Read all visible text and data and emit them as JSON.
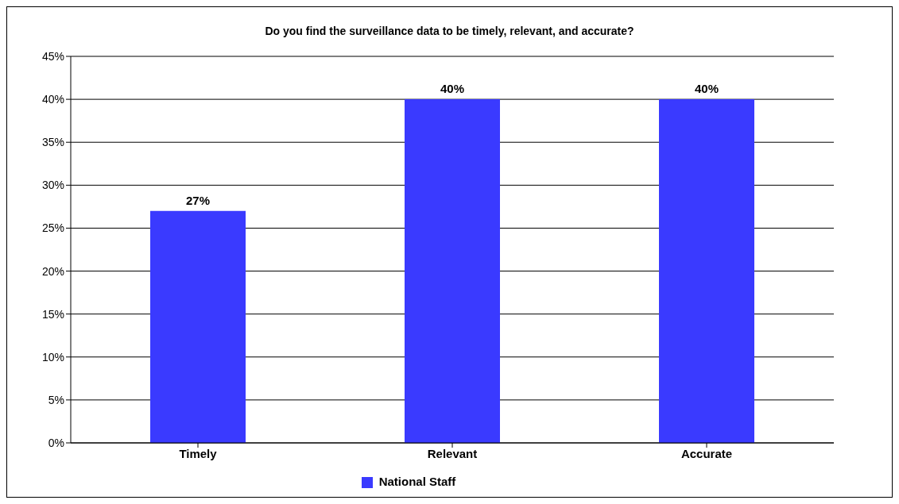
{
  "chart_data": {
    "type": "bar",
    "title": "Do you find the surveillance data to be timely, relevant, and accurate?",
    "categories": [
      "Timely",
      "Relevant",
      "Accurate"
    ],
    "series": [
      {
        "name": "National Staff",
        "color": "#3a3aff",
        "values": [
          27,
          40,
          40
        ],
        "value_labels": [
          "27%",
          "40%",
          "40%"
        ]
      }
    ],
    "ylim": [
      0,
      45
    ],
    "yticks": [
      {
        "value": 0,
        "label": "0%"
      },
      {
        "value": 5,
        "label": "5%"
      },
      {
        "value": 10,
        "label": "10%"
      },
      {
        "value": 15,
        "label": "15%"
      },
      {
        "value": 20,
        "label": "20%"
      },
      {
        "value": 25,
        "label": "25%"
      },
      {
        "value": 30,
        "label": "30%"
      },
      {
        "value": 35,
        "label": "35%"
      },
      {
        "value": 40,
        "label": "40%"
      },
      {
        "value": 45,
        "label": "45%"
      }
    ],
    "grid": "y",
    "legend": "bottom"
  }
}
